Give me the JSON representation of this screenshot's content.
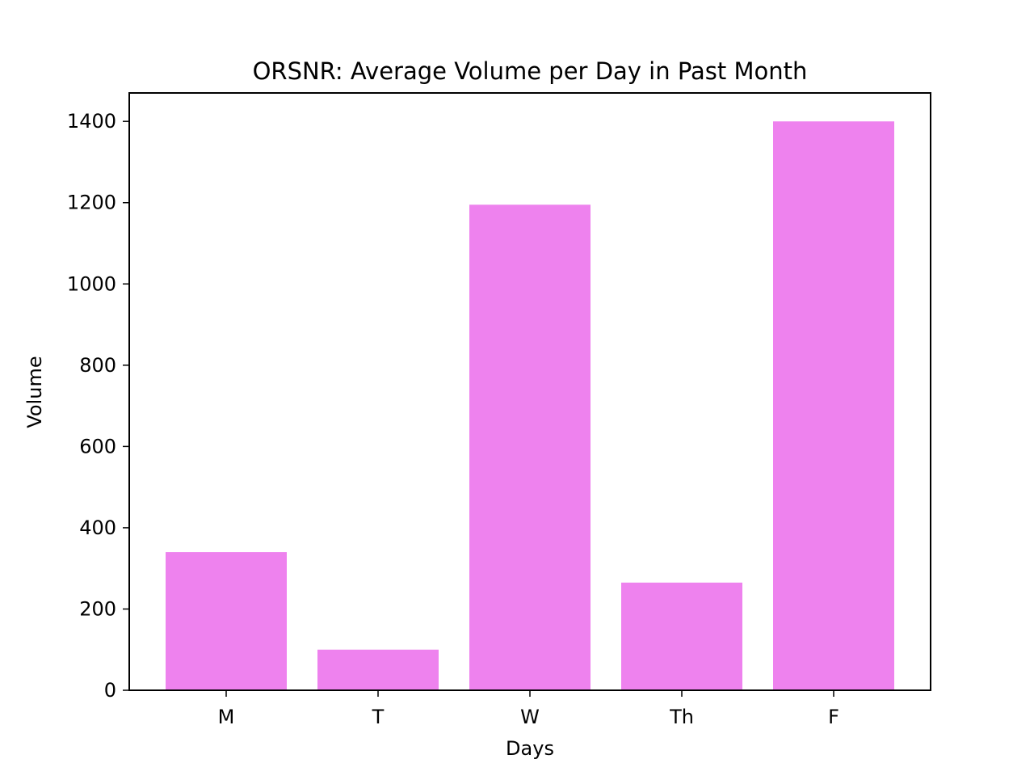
{
  "chart_data": {
    "type": "bar",
    "title": "ORSNR: Average Volume per Day in Past Month",
    "xlabel": "Days",
    "ylabel": "Volume",
    "categories": [
      "M",
      "T",
      "W",
      "Th",
      "F"
    ],
    "values": [
      340,
      100,
      1195,
      265,
      1400
    ],
    "ylim": [
      0,
      1470
    ],
    "yticks": [
      "0",
      "200",
      "400",
      "600",
      "800",
      "1000",
      "1200",
      "1400"
    ],
    "bar_color": "#ee82ee",
    "grid": false,
    "legend": "none"
  }
}
